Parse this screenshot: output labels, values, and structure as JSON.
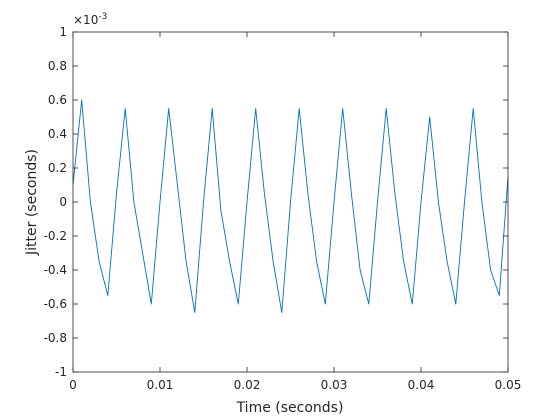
{
  "chart_data": {
    "type": "line",
    "title": "",
    "xlabel": "Time (seconds)",
    "ylabel": "Jitter (seconds)",
    "xlim": [
      0,
      0.05
    ],
    "ylim": [
      -1,
      1
    ],
    "y_exponent_base": "×10",
    "y_exponent_power": "-3",
    "xticks": [
      0,
      0.01,
      0.02,
      0.03,
      0.04,
      0.05
    ],
    "xtick_labels": [
      "0",
      "0.01",
      "0.02",
      "0.03",
      "0.04",
      "0.05"
    ],
    "yticks": [
      -1,
      -0.8,
      -0.6,
      -0.4,
      -0.2,
      0,
      0.2,
      0.4,
      0.6,
      0.8,
      1
    ],
    "ytick_labels": [
      "-1",
      "-0.8",
      "-0.6",
      "-0.4",
      "-0.2",
      "0",
      "0.2",
      "0.4",
      "0.6",
      "0.8",
      "1"
    ],
    "grid": false,
    "legend": "none",
    "series_color": "#0072BD",
    "series": [
      {
        "x": [
          0,
          0.001,
          0.002,
          0.003,
          0.004,
          0.005,
          0.006,
          0.007,
          0.008,
          0.009,
          0.01,
          0.011,
          0.012,
          0.013,
          0.014,
          0.015,
          0.016,
          0.017,
          0.018,
          0.019,
          0.02,
          0.021,
          0.022,
          0.023,
          0.024,
          0.025,
          0.026,
          0.027,
          0.028,
          0.029,
          0.03,
          0.031,
          0.032,
          0.033,
          0.034,
          0.035,
          0.036,
          0.037,
          0.038,
          0.039,
          0.04,
          0.041,
          0.042,
          0.043,
          0.044,
          0.045,
          0.046,
          0.047,
          0.048,
          0.049,
          0.05
        ],
        "y": [
          0.1,
          0.6,
          0.0,
          -0.35,
          -0.55,
          0.05,
          0.55,
          0.0,
          -0.3,
          -0.6,
          0.0,
          0.55,
          0.1,
          -0.35,
          -0.65,
          0.0,
          0.55,
          -0.05,
          -0.35,
          -0.6,
          0.0,
          0.55,
          0.05,
          -0.35,
          -0.65,
          0.0,
          0.55,
          0.05,
          -0.35,
          -0.6,
          0.0,
          0.55,
          0.05,
          -0.4,
          -0.6,
          0.0,
          0.55,
          0.05,
          -0.35,
          -0.6,
          0.0,
          0.5,
          0.0,
          -0.35,
          -0.6,
          0.0,
          0.55,
          0.0,
          -0.4,
          -0.55,
          0.15
        ]
      }
    ]
  }
}
